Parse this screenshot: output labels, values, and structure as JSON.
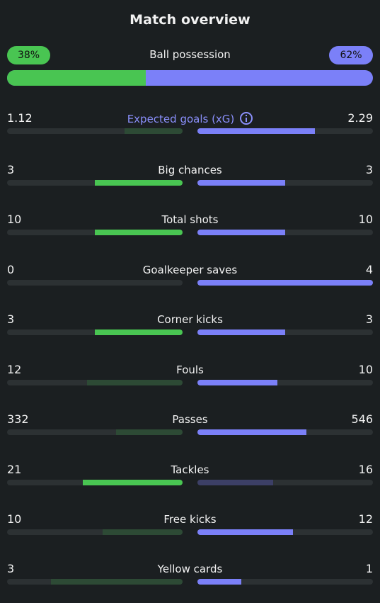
{
  "header": {
    "title": "Match overview"
  },
  "possession": {
    "label": "Ball possession",
    "home_text": "38%",
    "away_text": "62%",
    "home_pct": 38,
    "away_pct": 62
  },
  "info_icon": "info-icon",
  "colors": {
    "home_highlight": "#49c552",
    "home_dim": "#2d4a35",
    "away_highlight": "#7b80f8",
    "away_dim": "#3c3f66",
    "track": "#2c3133",
    "xg_label": "#8a8ffb"
  },
  "stats": [
    {
      "label": "Expected goals (xG)",
      "home": "1.12",
      "away": "2.29",
      "home_ratio": 0.33,
      "away_ratio": 0.67,
      "home_state": "dim",
      "away_state": "highlight",
      "info": true
    },
    {
      "label": "Big chances",
      "home": "3",
      "away": "3",
      "home_ratio": 0.5,
      "away_ratio": 0.5,
      "home_state": "highlight",
      "away_state": "highlight"
    },
    {
      "label": "Total shots",
      "home": "10",
      "away": "10",
      "home_ratio": 0.5,
      "away_ratio": 0.5,
      "home_state": "highlight",
      "away_state": "highlight"
    },
    {
      "label": "Goalkeeper saves",
      "home": "0",
      "away": "4",
      "home_ratio": 0,
      "away_ratio": 1,
      "home_state": "dim",
      "away_state": "highlight"
    },
    {
      "label": "Corner kicks",
      "home": "3",
      "away": "3",
      "home_ratio": 0.5,
      "away_ratio": 0.5,
      "home_state": "highlight",
      "away_state": "highlight"
    },
    {
      "label": "Fouls",
      "home": "12",
      "away": "10",
      "home_ratio": 0.545,
      "away_ratio": 0.455,
      "home_state": "dim",
      "away_state": "highlight"
    },
    {
      "label": "Passes",
      "home": "332",
      "away": "546",
      "home_ratio": 0.378,
      "away_ratio": 0.622,
      "home_state": "dim",
      "away_state": "highlight"
    },
    {
      "label": "Tackles",
      "home": "21",
      "away": "16",
      "home_ratio": 0.568,
      "away_ratio": 0.432,
      "home_state": "highlight",
      "away_state": "dim"
    },
    {
      "label": "Free kicks",
      "home": "10",
      "away": "12",
      "home_ratio": 0.455,
      "away_ratio": 0.545,
      "home_state": "dim",
      "away_state": "highlight"
    },
    {
      "label": "Yellow cards",
      "home": "3",
      "away": "1",
      "home_ratio": 0.75,
      "away_ratio": 0.25,
      "home_state": "dim",
      "away_state": "highlight"
    }
  ]
}
